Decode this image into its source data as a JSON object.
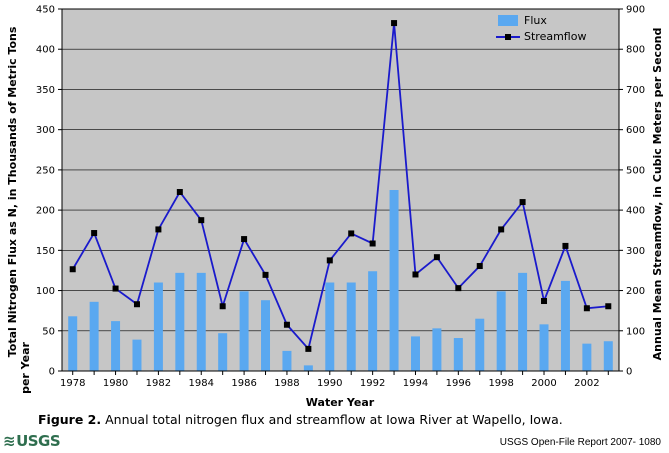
{
  "chart_data": {
    "type": "bar",
    "x": [
      1978,
      1979,
      1980,
      1981,
      1982,
      1983,
      1984,
      1985,
      1986,
      1987,
      1988,
      1989,
      1990,
      1991,
      1992,
      1993,
      1994,
      1995,
      1996,
      1997,
      1998,
      1999,
      2000,
      2001,
      2002,
      2003
    ],
    "series": [
      {
        "name": "Flux",
        "type": "bar",
        "axis": "left",
        "color": "#5aa8f0",
        "values": [
          68,
          86,
          62,
          39,
          110,
          122,
          122,
          47,
          99,
          88,
          25,
          7,
          110,
          110,
          124,
          225,
          43,
          53,
          41,
          65,
          99,
          122,
          58,
          112,
          34,
          37
        ]
      },
      {
        "name": "Streamflow",
        "type": "line",
        "axis": "right",
        "color": "#1a1acc",
        "values": [
          253,
          343,
          205,
          166,
          352,
          445,
          375,
          161,
          328,
          239,
          115,
          55,
          275,
          342,
          317,
          865,
          240,
          283,
          206,
          261,
          352,
          420,
          174,
          311,
          156,
          161
        ]
      }
    ],
    "xlabel": "Water Year",
    "ylabel": "Total Nitrogen Flux as N, in Thousands of Metric Tons per Year",
    "y2label": "Annual Mean Streamflow, in Cubic Meters per Second",
    "xlim": [
      1977.5,
      2003.5
    ],
    "ylim": [
      0,
      450
    ],
    "y2lim": [
      0,
      900
    ],
    "xticks": [
      "1978",
      "1980",
      "1982",
      "1984",
      "1986",
      "1988",
      "1990",
      "1992",
      "1994",
      "1996",
      "1998",
      "2000",
      "2002"
    ],
    "yticks": [
      "0",
      "50",
      "100",
      "150",
      "200",
      "250",
      "300",
      "350",
      "400",
      "450"
    ],
    "y2ticks": [
      "0",
      "100",
      "200",
      "300",
      "400",
      "500",
      "600",
      "700",
      "800",
      "900"
    ],
    "legend_position": "top-right",
    "grid": "horizontal",
    "background": "#c6c6c6"
  },
  "caption": {
    "label": "Figure 2.",
    "text": " Annual total nitrogen flux and streamflow at Iowa River at Wapello, Iowa."
  },
  "footer": {
    "logo_text": "USGS",
    "report": "USGS Open-File Report 2007- 1080"
  }
}
